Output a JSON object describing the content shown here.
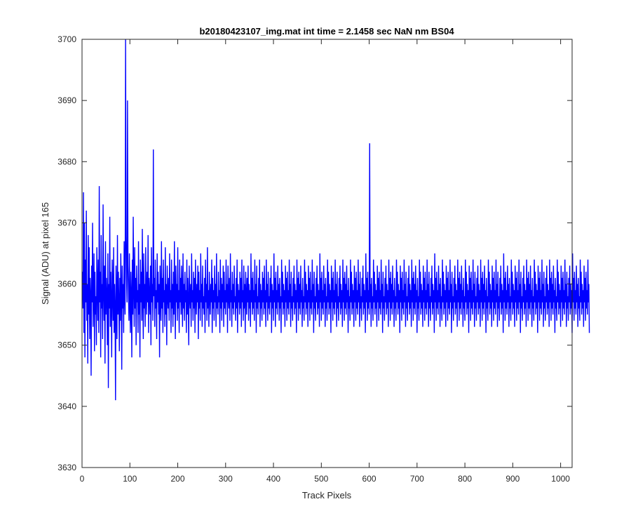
{
  "figure": {
    "background": "#ffffff",
    "axes_color": "#262626"
  },
  "chart_data": {
    "type": "line",
    "title": "b20180423107_img.mat int time = 2.1458 sec  NaN nm BS04",
    "xlabel": "Track Pixels",
    "ylabel": "Signal (ADU) at pixel 165",
    "xlim": [
      0,
      1024
    ],
    "ylim": [
      3630,
      3700
    ],
    "xticks": [
      0,
      100,
      200,
      300,
      400,
      500,
      600,
      700,
      800,
      900,
      1000
    ],
    "yticks": [
      3630,
      3640,
      3650,
      3660,
      3670,
      3680,
      3690,
      3700
    ],
    "grid": false,
    "box": true,
    "series": [
      {
        "color": "#0000ff",
        "x_start": 1,
        "x_step": 1,
        "y": [
          3662,
          3656,
          3675,
          3652,
          3670,
          3648,
          3664,
          3657,
          3672,
          3654,
          3660,
          3647,
          3668,
          3655,
          3666,
          3651,
          3661,
          3658,
          3645,
          3663,
          3657,
          3670,
          3653,
          3659,
          3665,
          3649,
          3662,
          3655,
          3658,
          3650,
          3666,
          3660,
          3654,
          3664,
          3652,
          3676,
          3657,
          3662,
          3648,
          3668,
          3656,
          3660,
          3651,
          3673,
          3659,
          3654,
          3663,
          3647,
          3667,
          3655,
          3661,
          3658,
          3650,
          3665,
          3643,
          3660,
          3656,
          3671,
          3653,
          3662,
          3657,
          3648,
          3664,
          3659,
          3654,
          3666,
          3652,
          3660,
          3656,
          3641,
          3663,
          3658,
          3651,
          3668,
          3655,
          3662,
          3657,
          3649,
          3661,
          3654,
          3665,
          3659,
          3646,
          3663,
          3656,
          3660,
          3652,
          3667,
          3658,
          3655,
          3700,
          3668,
          3661,
          3657,
          3690,
          3663,
          3659,
          3654,
          3665,
          3657,
          3652,
          3662,
          3658,
          3648,
          3664,
          3655,
          3671,
          3659,
          3653,
          3666,
          3656,
          3661,
          3650,
          3663,
          3657,
          3659,
          3652,
          3667,
          3655,
          3660,
          3648,
          3664,
          3657,
          3662,
          3654,
          3669,
          3658,
          3651,
          3665,
          3656,
          3660,
          3653,
          3666,
          3659,
          3655,
          3662,
          3657,
          3668,
          3652,
          3661,
          3658,
          3655,
          3663,
          3650,
          3666,
          3657,
          3660,
          3654,
          3682,
          3658,
          3661,
          3653,
          3664,
          3656,
          3659,
          3651,
          3665,
          3657,
          3662,
          3655,
          3660,
          3648,
          3663,
          3658,
          3654,
          3667,
          3656,
          3661,
          3652,
          3664,
          3657,
          3659,
          3653,
          3666,
          3655,
          3660,
          3650,
          3663,
          3658,
          3656,
          3661,
          3654,
          3665,
          3657,
          3659,
          3652,
          3664,
          3656,
          3660,
          3653,
          3662,
          3655,
          3667,
          3658,
          3651,
          3663,
          3657,
          3660,
          3654,
          3666,
          3656,
          3659,
          3652,
          3664,
          3657,
          3661,
          3655,
          3663,
          3658,
          3653,
          3665,
          3656,
          3660,
          3654,
          3662,
          3657,
          3659,
          3652,
          3664,
          3655,
          3661,
          3657,
          3650,
          3663,
          3658,
          3656,
          3660,
          3653,
          3665,
          3657,
          3659,
          3654,
          3662,
          3656,
          3661,
          3652,
          3664,
          3658,
          3655,
          3660,
          3657,
          3663,
          3651,
          3662,
          3656,
          3659,
          3654,
          3665,
          3657,
          3660,
          3653,
          3663,
          3656,
          3658,
          3655,
          3661,
          3652,
          3664,
          3657,
          3660,
          3654,
          3666,
          3656,
          3659,
          3653,
          3662,
          3658,
          3655,
          3660,
          3657,
          3664,
          3652,
          3661,
          3656,
          3659,
          3654,
          3663,
          3657,
          3660,
          3653,
          3665,
          3656,
          3658,
          3655,
          3662,
          3657,
          3659,
          3652,
          3664,
          3656,
          3661,
          3654,
          3660,
          3657,
          3663,
          3653,
          3662,
          3656,
          3659,
          3655,
          3664,
          3657,
          3660,
          3652,
          3663,
          3658,
          3656,
          3661,
          3654,
          3665,
          3657,
          3659,
          3653,
          3662,
          3656,
          3660,
          3655,
          3663,
          3657,
          3658,
          3654,
          3661,
          3656,
          3664,
          3652,
          3660,
          3657,
          3659,
          3655,
          3662,
          3656,
          3661,
          3653,
          3664,
          3657,
          3659,
          3654,
          3663,
          3656,
          3660,
          3652,
          3662,
          3658,
          3655,
          3661,
          3657,
          3663,
          3654,
          3660,
          3656,
          3659,
          3653,
          3665,
          3657,
          3661,
          3655,
          3662,
          3656,
          3659,
          3654,
          3664,
          3657,
          3660,
          3652,
          3663,
          3656,
          3658,
          3655,
          3661,
          3657,
          3664,
          3653,
          3660,
          3656,
          3659,
          3654,
          3662,
          3657,
          3661,
          3655,
          3663,
          3656,
          3659,
          3653,
          3664,
          3657,
          3660,
          3654,
          3662,
          3656,
          3658,
          3655,
          3661,
          3657,
          3663,
          3652,
          3660,
          3656,
          3659,
          3654,
          3665,
          3657,
          3661,
          3653,
          3662,
          3656,
          3659,
          3655,
          3663,
          3657,
          3660,
          3654,
          3661,
          3656,
          3658,
          3652,
          3664,
          3657,
          3662,
          3655,
          3660,
          3656,
          3659,
          3653,
          3663,
          3657,
          3661,
          3654,
          3662,
          3656,
          3659,
          3655,
          3664,
          3657,
          3660,
          3653,
          3662,
          3656,
          3658,
          3654,
          3661,
          3657,
          3663,
          3655,
          3660,
          3656,
          3659,
          3652,
          3664,
          3657,
          3661,
          3654,
          3662,
          3656,
          3660,
          3655,
          3663,
          3657,
          3659,
          3653,
          3661,
          3656,
          3658,
          3654,
          3664,
          3657,
          3662,
          3655,
          3660,
          3656,
          3659,
          3653,
          3663,
          3657,
          3661,
          3654,
          3662,
          3656,
          3659,
          3655,
          3664,
          3657,
          3660,
          3652,
          3662,
          3656,
          3658,
          3654,
          3661,
          3657,
          3663,
          3655,
          3660,
          3656,
          3659,
          3653,
          3665,
          3657,
          3661,
          3654,
          3662,
          3656,
          3659,
          3655,
          3663,
          3657,
          3660,
          3653,
          3661,
          3656,
          3658,
          3654,
          3664,
          3657,
          3662,
          3655,
          3660,
          3656,
          3659,
          3652,
          3663,
          3657,
          3661,
          3654,
          3662,
          3656,
          3659,
          3655,
          3664,
          3657,
          3660,
          3653,
          3662,
          3656,
          3658,
          3654,
          3661,
          3657,
          3663,
          3655,
          3660,
          3656,
          3659,
          3653,
          3664,
          3657,
          3661,
          3654,
          3662,
          3656,
          3660,
          3655,
          3663,
          3657,
          3659,
          3652,
          3661,
          3656,
          3658,
          3654,
          3664,
          3657,
          3662,
          3655,
          3660,
          3656,
          3659,
          3653,
          3663,
          3657,
          3661,
          3654,
          3662,
          3656,
          3659,
          3655,
          3664,
          3657,
          3660,
          3653,
          3662,
          3656,
          3658,
          3654,
          3661,
          3657,
          3663,
          3655,
          3660,
          3656,
          3659,
          3652,
          3665,
          3657,
          3661,
          3654,
          3662,
          3656,
          3659,
          3655,
          3683,
          3657,
          3660,
          3653,
          3661,
          3656,
          3658,
          3654,
          3664,
          3657,
          3662,
          3655,
          3660,
          3656,
          3659,
          3653,
          3663,
          3657,
          3661,
          3654,
          3662,
          3656,
          3659,
          3655,
          3664,
          3657,
          3660,
          3652,
          3662,
          3656,
          3658,
          3654,
          3661,
          3657,
          3663,
          3655,
          3660,
          3656,
          3659,
          3653,
          3664,
          3657,
          3661,
          3654,
          3662,
          3656,
          3660,
          3655,
          3663,
          3657,
          3659,
          3653,
          3661,
          3656,
          3658,
          3654,
          3664,
          3657,
          3662,
          3655,
          3660,
          3656,
          3659,
          3652,
          3663,
          3657,
          3661,
          3654,
          3662,
          3656,
          3659,
          3655,
          3664,
          3657,
          3660,
          3653,
          3662,
          3656,
          3658,
          3654,
          3661,
          3657,
          3663,
          3655,
          3660,
          3656,
          3659,
          3653,
          3664,
          3657,
          3661,
          3654,
          3662,
          3656,
          3660,
          3655,
          3663,
          3657,
          3659,
          3652,
          3661,
          3656,
          3658,
          3654,
          3664,
          3657,
          3662,
          3655,
          3660,
          3656,
          3659,
          3653,
          3663,
          3657,
          3661,
          3654,
          3662,
          3656,
          3659,
          3655,
          3664,
          3657,
          3660,
          3653,
          3662,
          3656,
          3658,
          3654,
          3661,
          3657,
          3663,
          3655,
          3660,
          3656,
          3659,
          3652,
          3665,
          3657,
          3661,
          3654,
          3662,
          3656,
          3659,
          3655,
          3663,
          3657,
          3660,
          3653,
          3661,
          3656,
          3658,
          3654,
          3664,
          3657,
          3662,
          3655,
          3660,
          3656,
          3659,
          3653,
          3663,
          3657,
          3661,
          3654,
          3662,
          3656,
          3659,
          3655,
          3664,
          3657,
          3660,
          3652,
          3662,
          3656,
          3658,
          3654,
          3661,
          3657,
          3663,
          3655,
          3660,
          3656,
          3659,
          3653,
          3664,
          3657,
          3661,
          3654,
          3662,
          3656,
          3660,
          3655,
          3663,
          3657,
          3659,
          3653,
          3661,
          3656,
          3658,
          3654,
          3664,
          3657,
          3662,
          3655,
          3660,
          3656,
          3659,
          3652,
          3663,
          3657,
          3661,
          3654,
          3662,
          3656,
          3659,
          3655,
          3664,
          3657,
          3660,
          3653,
          3662,
          3656,
          3658,
          3654,
          3661,
          3657,
          3663,
          3655,
          3660,
          3656,
          3659,
          3653,
          3664,
          3657,
          3661,
          3654,
          3662,
          3656,
          3660,
          3655,
          3663,
          3657,
          3659,
          3652,
          3661,
          3656,
          3658,
          3654,
          3664,
          3657,
          3662,
          3655,
          3660,
          3656,
          3659,
          3653,
          3663,
          3657,
          3661,
          3654,
          3662,
          3656,
          3659,
          3655,
          3664,
          3657,
          3660,
          3653,
          3662,
          3656,
          3658,
          3654,
          3661,
          3657,
          3663,
          3655,
          3660,
          3656,
          3659,
          3652,
          3665,
          3657,
          3661,
          3654,
          3662,
          3656,
          3659,
          3655,
          3663,
          3657,
          3660,
          3653,
          3661,
          3656,
          3658,
          3654,
          3664,
          3657,
          3662,
          3655,
          3660,
          3656,
          3659,
          3653,
          3663,
          3657,
          3661,
          3654,
          3662,
          3656,
          3659,
          3655,
          3664,
          3657,
          3660,
          3652,
          3662,
          3656,
          3658,
          3654,
          3661,
          3657,
          3663,
          3655,
          3660,
          3656,
          3659,
          3653,
          3664,
          3657,
          3661,
          3654,
          3662,
          3656,
          3660,
          3655,
          3663,
          3657,
          3659,
          3653,
          3661,
          3656,
          3658,
          3654,
          3664,
          3657,
          3662,
          3655,
          3660,
          3656,
          3659,
          3652,
          3663,
          3657,
          3661,
          3654,
          3662,
          3656,
          3659,
          3655,
          3664,
          3657,
          3660,
          3653,
          3662,
          3656,
          3658,
          3654,
          3661,
          3657,
          3663,
          3655,
          3660,
          3656,
          3659,
          3653,
          3664,
          3657,
          3661,
          3654,
          3662,
          3656,
          3660,
          3655,
          3663,
          3657,
          3659,
          3652,
          3661,
          3656,
          3658,
          3654,
          3664,
          3657,
          3662,
          3655,
          3660,
          3656,
          3659,
          3653,
          3663,
          3657,
          3661,
          3654,
          3662,
          3656,
          3659,
          3655,
          3664,
          3657,
          3660,
          3653,
          3662,
          3656,
          3658,
          3654,
          3661,
          3657,
          3663,
          3655,
          3660,
          3656,
          3659,
          3652,
          3665,
          3657,
          3661,
          3654,
          3662,
          3656,
          3659,
          3655,
          3663,
          3657,
          3660,
          3653,
          3661,
          3656,
          3658,
          3654,
          3664,
          3657,
          3662,
          3655,
          3660,
          3656,
          3659,
          3653,
          3663,
          3657,
          3661,
          3654,
          3662,
          3656,
          3659,
          3655,
          3664,
          3657,
          3660,
          3652
        ]
      }
    ]
  }
}
